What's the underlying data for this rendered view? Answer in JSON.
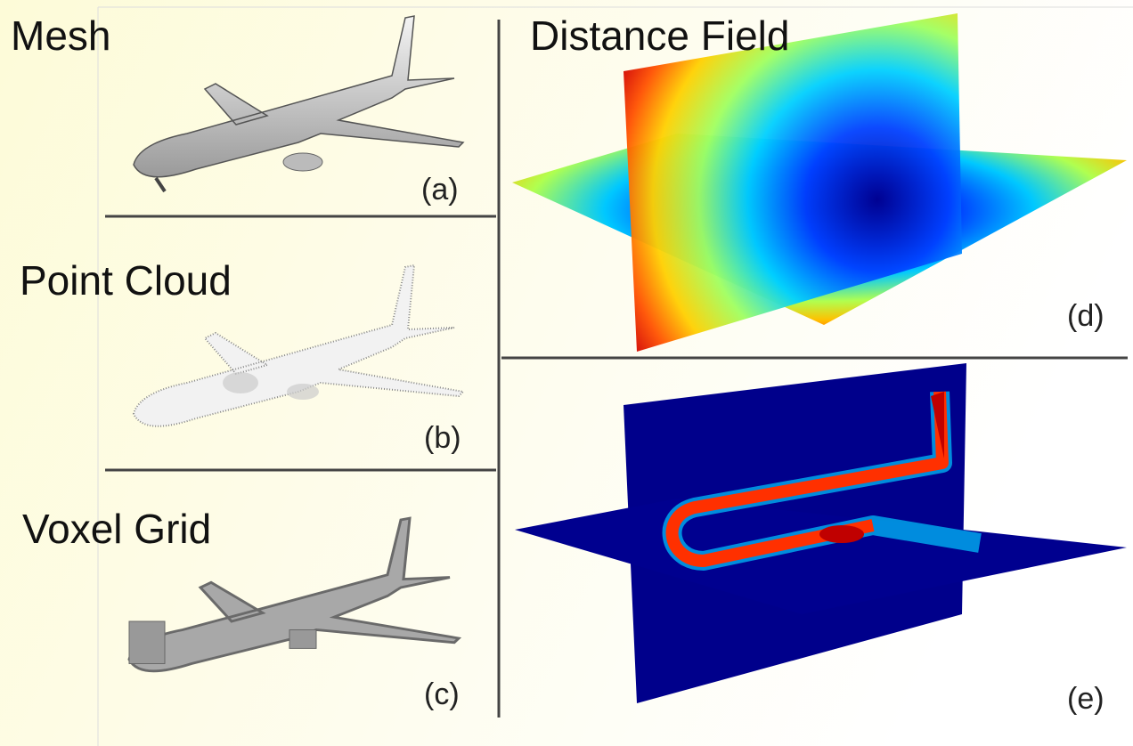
{
  "panels": [
    {
      "title": "Mesh",
      "tag": "(a)"
    },
    {
      "title": "Point Cloud",
      "tag": "(b)"
    },
    {
      "title": "Voxel Grid",
      "tag": "(c)"
    },
    {
      "title": "Distance Field",
      "tag": "(d)"
    },
    {
      "tag": "(e)"
    }
  ]
}
